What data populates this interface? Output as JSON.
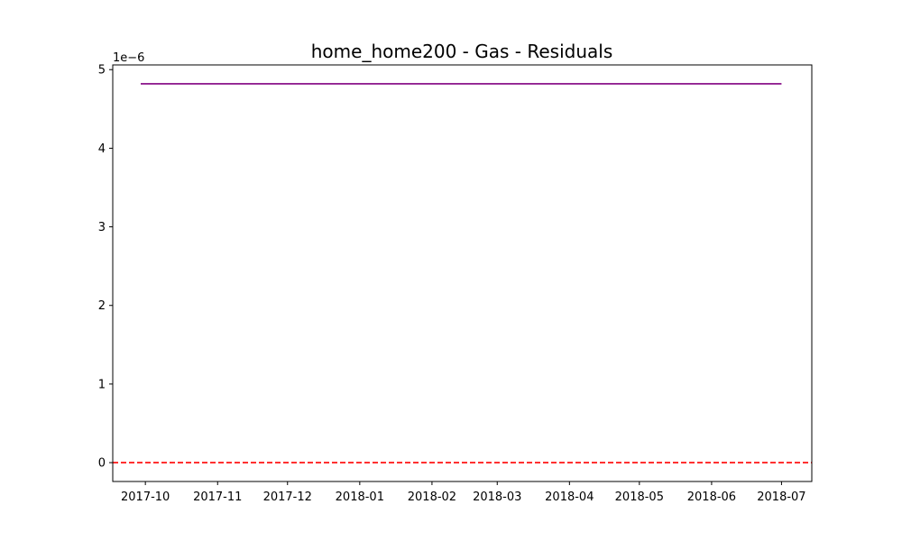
{
  "chart_data": {
    "type": "line",
    "title": "home_home200 - Gas - Residuals",
    "xlabel": "",
    "ylabel": "",
    "y_offset_label": "1e−6",
    "x_tick_labels": [
      "2017-10",
      "2017-11",
      "2017-12",
      "2018-01",
      "2018-02",
      "2018-03",
      "2018-04",
      "2018-05",
      "2018-06",
      "2018-07"
    ],
    "x_ticks": [
      "2017-10-01",
      "2017-11-01",
      "2017-12-01",
      "2018-01-01",
      "2018-02-01",
      "2018-03-01",
      "2018-04-01",
      "2018-05-01",
      "2018-06-01",
      "2018-07-01"
    ],
    "xlim": [
      "2017-09-17",
      "2018-07-14"
    ],
    "y_tick_labels": [
      "0",
      "1",
      "2",
      "3",
      "4",
      "5"
    ],
    "y_ticks": [
      0,
      1,
      2,
      3,
      4,
      5
    ],
    "ylim": [
      -0.24,
      5.06
    ],
    "grid": false,
    "series": [
      {
        "color": "#800080",
        "x": [
          "2017-09-29",
          "2018-07-01"
        ],
        "values": [
          4.82,
          4.82
        ]
      }
    ],
    "reference_line": {
      "y": 0,
      "color": "#ff0000",
      "style": "dashed"
    }
  }
}
